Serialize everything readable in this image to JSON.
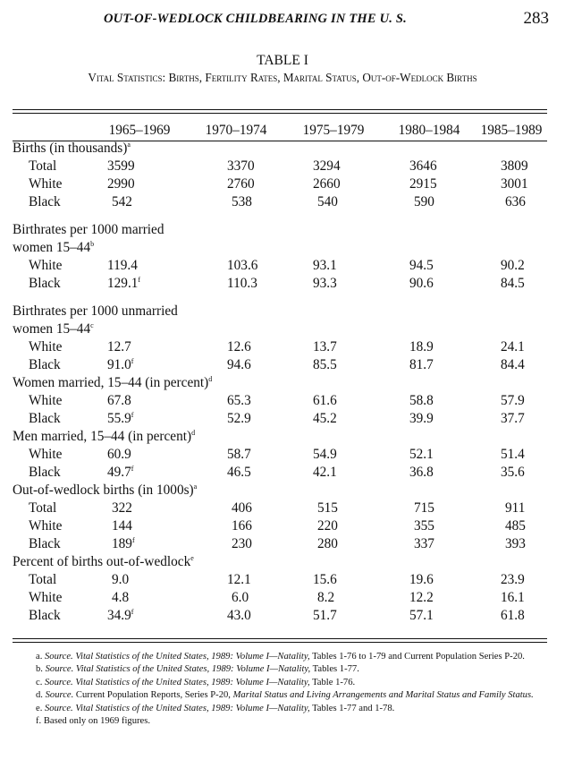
{
  "header": {
    "running_head": "OUT-OF-WEDLOCK CHILDBEARING IN THE U. S.",
    "page_number": "283"
  },
  "caption": {
    "label": "TABLE I",
    "title": "Vital Statistics: Births, Fertility Rates, Marital Status, Out-of-Wedlock Births"
  },
  "columns": [
    "1965–1969",
    "1970–1974",
    "1975–1979",
    "1980–1984",
    "1985–1989"
  ],
  "groups": [
    {
      "label": "Births (in thousands)",
      "label_line2": "",
      "note": "a",
      "rows": [
        {
          "name": "Total",
          "values": [
            "3599",
            "3370",
            "3294",
            "3646",
            "3809"
          ],
          "notes": [
            "",
            "",
            "",
            "",
            ""
          ]
        },
        {
          "name": "White",
          "values": [
            "2990",
            "2760",
            "2660",
            "2915",
            "3001"
          ],
          "notes": [
            "",
            "",
            "",
            "",
            ""
          ]
        },
        {
          "name": "Black",
          "values": [
            "542",
            "538",
            "540",
            "590",
            "636"
          ],
          "notes": [
            "",
            "",
            "",
            "",
            ""
          ]
        }
      ]
    },
    {
      "label": "Birthrates per 1000 married",
      "label_line2": "women 15–44",
      "note": "b",
      "rows": [
        {
          "name": "White",
          "values": [
            "119.4",
            "103.6",
            "93.1",
            "94.5",
            "90.2"
          ],
          "notes": [
            "",
            "",
            "",
            "",
            ""
          ]
        },
        {
          "name": "Black",
          "values": [
            "129.1",
            "110.3",
            "93.3",
            "90.6",
            "84.5"
          ],
          "notes": [
            "f",
            "",
            "",
            "",
            ""
          ]
        }
      ]
    },
    {
      "label": "Birthrates per 1000 unmarried",
      "label_line2": "women 15–44",
      "note": "c",
      "rows": [
        {
          "name": "White",
          "values": [
            "12.7",
            "12.6",
            "13.7",
            "18.9",
            "24.1"
          ],
          "notes": [
            "",
            "",
            "",
            "",
            ""
          ]
        },
        {
          "name": "Black",
          "values": [
            "91.0",
            "94.6",
            "85.5",
            "81.7",
            "84.4"
          ],
          "notes": [
            "f",
            "",
            "",
            "",
            ""
          ]
        }
      ]
    },
    {
      "label": "Women married, 15–44 (in percent)",
      "label_line2": "",
      "note": "d",
      "rows": [
        {
          "name": "White",
          "values": [
            "67.8",
            "65.3",
            "61.6",
            "58.8",
            "57.9"
          ],
          "notes": [
            "",
            "",
            "",
            "",
            ""
          ]
        },
        {
          "name": "Black",
          "values": [
            "55.9",
            "52.9",
            "45.2",
            "39.9",
            "37.7"
          ],
          "notes": [
            "f",
            "",
            "",
            "",
            ""
          ]
        }
      ]
    },
    {
      "label": "Men married, 15–44 (in percent)",
      "label_line2": "",
      "note": "d",
      "rows": [
        {
          "name": "White",
          "values": [
            "60.9",
            "58.7",
            "54.9",
            "52.1",
            "51.4"
          ],
          "notes": [
            "",
            "",
            "",
            "",
            ""
          ]
        },
        {
          "name": "Black",
          "values": [
            "49.7",
            "46.5",
            "42.1",
            "36.8",
            "35.6"
          ],
          "notes": [
            "f",
            "",
            "",
            "",
            ""
          ]
        }
      ]
    },
    {
      "label": "Out-of-wedlock births (in 1000s)",
      "label_line2": "",
      "note": "a",
      "rows": [
        {
          "name": "Total",
          "values": [
            "322",
            "406",
            "515",
            "715",
            "911"
          ],
          "notes": [
            "",
            "",
            "",
            "",
            ""
          ]
        },
        {
          "name": "White",
          "values": [
            "144",
            "166",
            "220",
            "355",
            "485"
          ],
          "notes": [
            "",
            "",
            "",
            "",
            ""
          ]
        },
        {
          "name": "Black",
          "values": [
            "189",
            "230",
            "280",
            "337",
            "393"
          ],
          "notes": [
            "f",
            "",
            "",
            "",
            ""
          ]
        }
      ]
    },
    {
      "label": "Percent of births out-of-wedlock",
      "label_line2": "",
      "note": "e",
      "rows": [
        {
          "name": "Total",
          "values": [
            "9.0",
            "12.1",
            "15.6",
            "19.6",
            "23.9"
          ],
          "notes": [
            "",
            "",
            "",
            "",
            ""
          ]
        },
        {
          "name": "White",
          "values": [
            "4.8",
            "6.0",
            "8.2",
            "12.2",
            "16.1"
          ],
          "notes": [
            "",
            "",
            "",
            "",
            ""
          ]
        },
        {
          "name": "Black",
          "values": [
            "34.9",
            "43.0",
            "51.7",
            "57.1",
            "61.8"
          ],
          "notes": [
            "f",
            "",
            "",
            "",
            ""
          ]
        }
      ]
    }
  ],
  "footnotes": [
    {
      "mark": "a.",
      "source": "Source.",
      "italic": "Vital Statistics of the United States, 1989: Volume I—Natality,",
      "rest": " Tables 1-76 to 1-79 and Current Population Series P-20."
    },
    {
      "mark": "b.",
      "source": "Source.",
      "italic": "Vital Statistics of the United States, 1989: Volume I—Natality,",
      "rest": " Tables 1-77."
    },
    {
      "mark": "c.",
      "source": "Source.",
      "italic": "Vital Statistics of the United States, 1989: Volume I—Natality,",
      "rest": " Table 1-76."
    },
    {
      "mark": "d.",
      "source": "Source.",
      "italic": "",
      "rest": " Current Population Reports, Series P-20, ",
      "italic2": "Marital Status and Living Arrangements and Marital Status and Family Status."
    },
    {
      "mark": "e.",
      "source": "Source.",
      "italic": "Vital Statistics of the United States, 1989: Volume I—Natality,",
      "rest": " Tables 1-77 and 1-78."
    },
    {
      "mark": "f.",
      "source": "",
      "italic": "",
      "rest": "Based only on 1969 figures."
    }
  ]
}
